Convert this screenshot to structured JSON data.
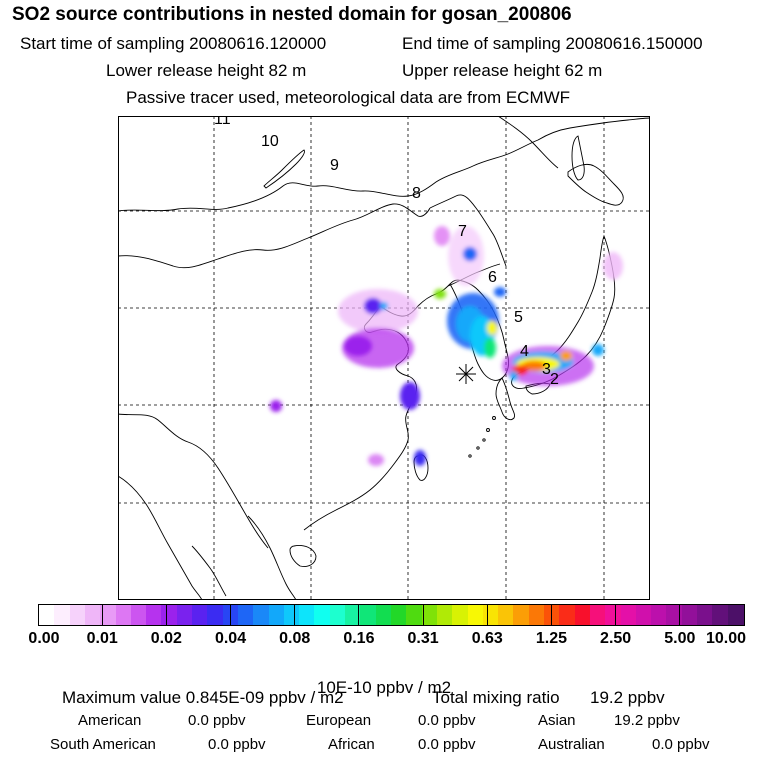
{
  "title": "SO2 source contributions in nested domain for gosan_200806",
  "header": {
    "start_label": "Start time of sampling 20080616.120000",
    "end_label": "End time of sampling 20080616.150000",
    "lower_label": "Lower release height   82 m",
    "upper_label": "Upper release height   62 m",
    "tracer_label": "Passive tracer used, meteorological data are from ECMWF"
  },
  "map": {
    "contour_labels": [
      "11",
      "10",
      "9",
      "8",
      "7",
      "6",
      "5",
      "4",
      "3",
      "2"
    ],
    "receptor_symbol": "*"
  },
  "colorbar": {
    "tick_labels": [
      "0.00",
      "0.01",
      "0.02",
      "0.04",
      "0.08",
      "0.16",
      "0.31",
      "0.63",
      "1.25",
      "2.50",
      "5.00",
      "10.00"
    ],
    "colors": [
      "#ffffff",
      "#fdeefe",
      "#f6d2fb",
      "#efb6f8",
      "#e89af6",
      "#dd77f3",
      "#cc55f0",
      "#b633ee",
      "#9b22ec",
      "#7a22ee",
      "#5a22f0",
      "#3b2cf2",
      "#2846f4",
      "#1e66f6",
      "#1a88f8",
      "#12a8fa",
      "#0fc8fb",
      "#0de4fb",
      "#10fff0",
      "#1dffcf",
      "#18f2a2",
      "#10e678",
      "#12dd50",
      "#22d828",
      "#4fdb10",
      "#7fe208",
      "#b0ea06",
      "#d8f204",
      "#f8f804",
      "#f9e404",
      "#fac406",
      "#fb9e06",
      "#fb7806",
      "#fb5208",
      "#fa2c18",
      "#f8102c",
      "#f6107a",
      "#f0109a",
      "#e410a8",
      "#d010ac",
      "#bc10ac",
      "#a810a4",
      "#92109a",
      "#7a108c",
      "#62107a",
      "#4c1068"
    ],
    "unit_label": "10E-10 ppbv / m2"
  },
  "footer": {
    "max_label": "Maximum value  0.845E-09 ppbv / m2",
    "total_label": "Total mixing ratio",
    "total_value": "19.2 ppbv",
    "regions": [
      {
        "name": "American",
        "value": "0.0 ppbv"
      },
      {
        "name": "European",
        "value": "0.0 ppbv"
      },
      {
        "name": "Asian",
        "value": "19.2 ppbv"
      },
      {
        "name": "South American",
        "value": "0.0 ppbv"
      },
      {
        "name": "African",
        "value": "0.0 ppbv"
      },
      {
        "name": "Australian",
        "value": "0.0 ppbv"
      }
    ]
  }
}
